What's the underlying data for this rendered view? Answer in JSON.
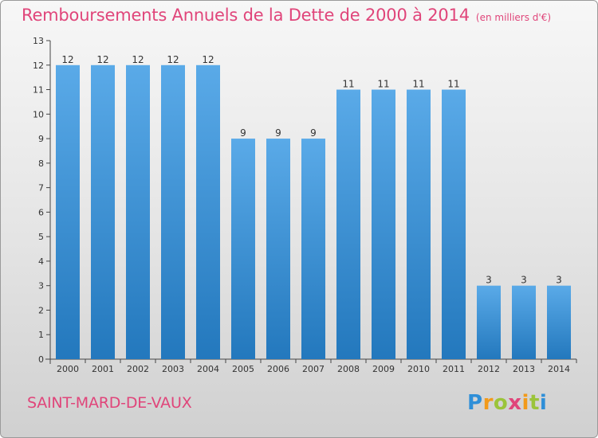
{
  "title": "Remboursements Annuels de la Dette de 2000 à 2014",
  "subtitle": "(en milliers d'€)",
  "commune": "SAINT-MARD-DE-VAUX",
  "brand": {
    "name": "Proxiti",
    "colors": [
      "#2f8fd8",
      "#f29a1a",
      "#9bc43a",
      "#e0457a"
    ]
  },
  "colors": {
    "bar_top": "#5aaae8",
    "bar_bottom": "#2378bd",
    "accent": "#e0457a"
  },
  "chart_data": {
    "type": "bar",
    "title": "Remboursements Annuels de la Dette de 2000 à 2014",
    "subtitle": "(en milliers d'€)",
    "xlabel": "",
    "ylabel": "",
    "categories": [
      "2000",
      "2001",
      "2002",
      "2003",
      "2004",
      "2005",
      "2006",
      "2007",
      "2008",
      "2009",
      "2010",
      "2011",
      "2012",
      "2013",
      "2014"
    ],
    "values": [
      12,
      12,
      12,
      12,
      12,
      9,
      9,
      9,
      11,
      11,
      11,
      11,
      3,
      3,
      3
    ],
    "data_labels": [
      "12",
      "12",
      "12",
      "12",
      "12",
      "9",
      "9",
      "9",
      "11",
      "11",
      "11",
      "11",
      "3",
      "3",
      "3"
    ],
    "ylim": [
      0,
      13
    ],
    "yticks": [
      "0",
      "1",
      "2",
      "3",
      "4",
      "5",
      "6",
      "7",
      "8",
      "9",
      "10",
      "11",
      "12",
      "13"
    ],
    "grid": false,
    "legend": "none"
  }
}
